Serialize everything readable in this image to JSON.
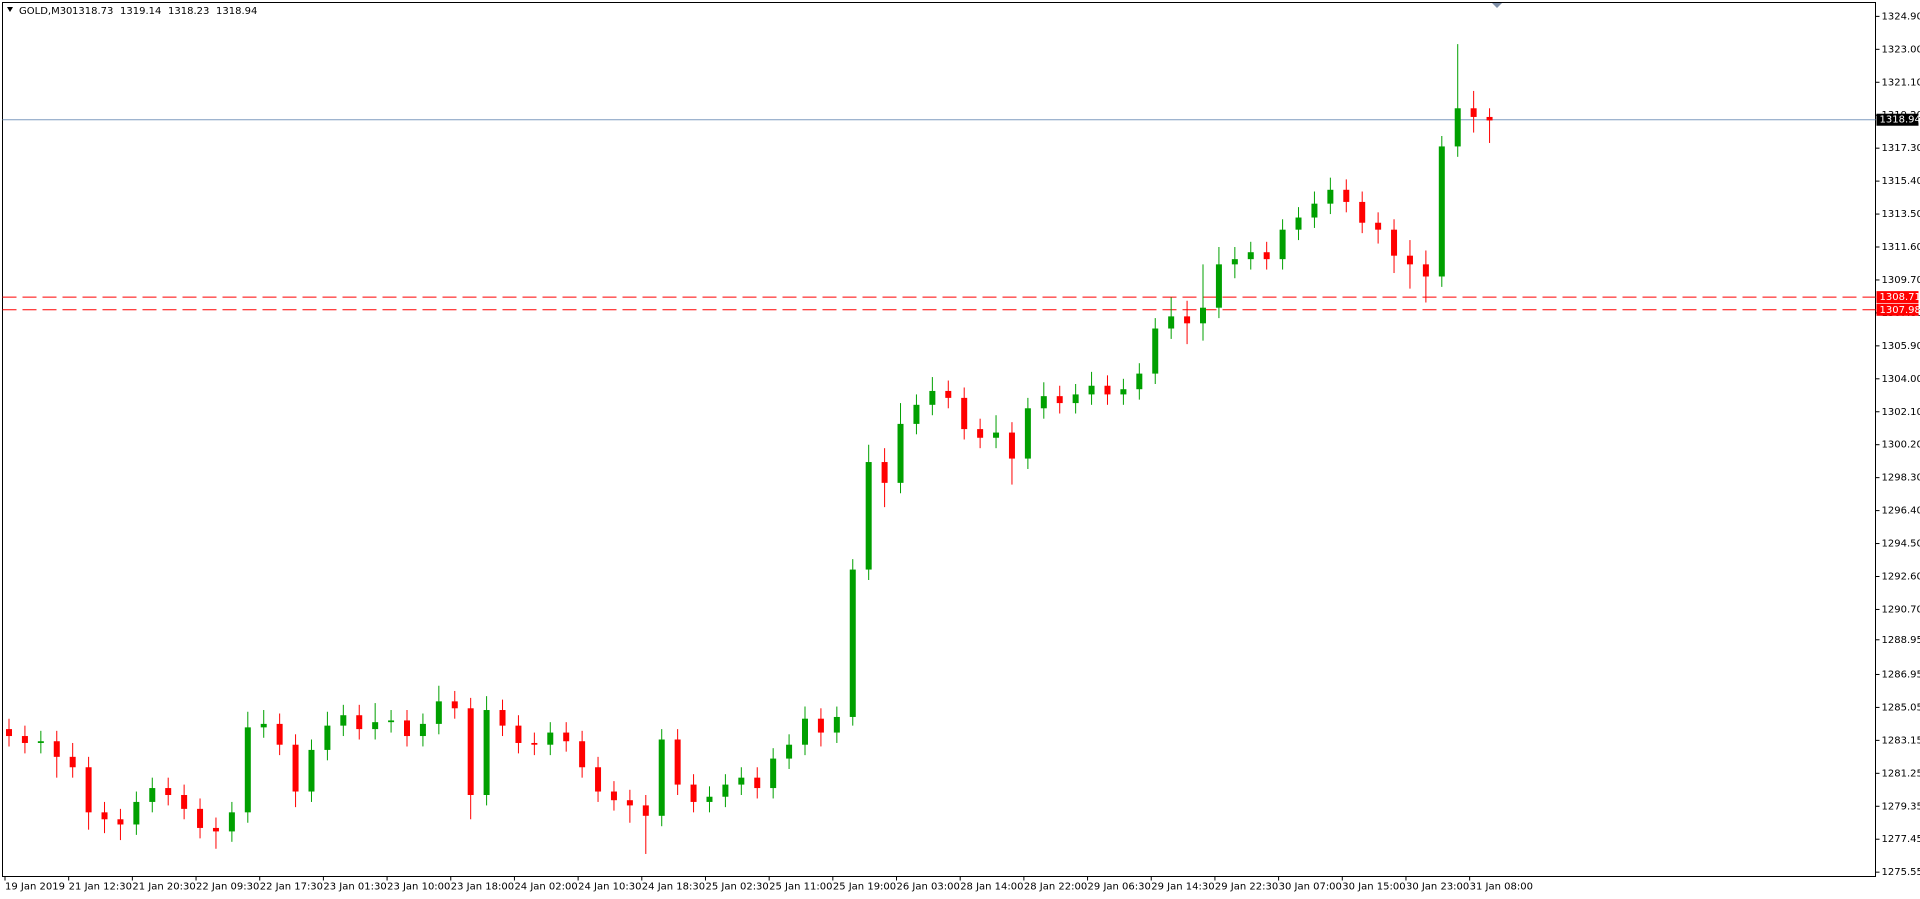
{
  "chart_data": {
    "type": "candlestick",
    "title": "GOLD,M30",
    "ohlc_header": [
      1318.73,
      1319.14,
      1318.23,
      1318.94
    ],
    "up_color": "#00a000",
    "down_color": "#ff0000",
    "categories": [
      "19 Jan 2019",
      null,
      null,
      null,
      "21 Jan 12:30",
      null,
      null,
      null,
      "21 Jan 20:30",
      null,
      null,
      null,
      "22 Jan 09:30",
      null,
      null,
      null,
      "22 Jan 17:30",
      null,
      null,
      null,
      "23 Jan 01:30",
      null,
      null,
      null,
      "23 Jan 10:00",
      null,
      null,
      null,
      "23 Jan 18:00",
      null,
      null,
      null,
      "24 Jan 02:00",
      null,
      null,
      null,
      "24 Jan 10:30",
      null,
      null,
      null,
      "24 Jan 18:30",
      null,
      null,
      null,
      "25 Jan 02:30",
      null,
      null,
      null,
      "25 Jan 11:00",
      null,
      null,
      null,
      "25 Jan 19:00",
      null,
      null,
      null,
      "26 Jan 03:00",
      null,
      null,
      null,
      "28 Jan 14:00",
      null,
      null,
      null,
      "28 Jan 22:00",
      null,
      null,
      null,
      "29 Jan 06:30",
      null,
      null,
      null,
      "29 Jan 14:30",
      null,
      null,
      null,
      "29 Jan 22:30",
      null,
      null,
      null,
      "30 Jan 07:00",
      null,
      null,
      null,
      "30 Jan 15:00",
      null,
      null,
      null,
      "30 Jan 23:00",
      null,
      null,
      null,
      "31 Jan 08:00",
      null
    ],
    "open": [
      1283.8,
      1283.4,
      1283.0,
      1283.1,
      1282.2,
      1281.6,
      1279.0,
      1278.6,
      1278.3,
      1279.6,
      1280.4,
      1280.0,
      1279.2,
      1278.1,
      1277.9,
      1279.0,
      1283.9,
      1284.1,
      1282.9,
      1280.2,
      1282.6,
      1284.0,
      1284.6,
      1283.8,
      1284.2,
      1284.3,
      1283.4,
      1284.1,
      1285.4,
      1285.0,
      1280.0,
      1284.9,
      1284.0,
      1283.0,
      1282.9,
      1283.6,
      1283.1,
      1281.6,
      1280.2,
      1279.7,
      1279.4,
      1278.8,
      1283.2,
      1280.6,
      1279.6,
      1279.9,
      1280.6,
      1281.0,
      1280.4,
      1282.1,
      1282.9,
      1284.4,
      1283.6,
      1284.5,
      1293.0,
      1299.2,
      1298.0,
      1301.4,
      1302.5,
      1303.3,
      1302.9,
      1301.1,
      1300.6,
      1300.9,
      1299.4,
      1302.3,
      1303.0,
      1302.6,
      1303.1,
      1303.6,
      1303.1,
      1303.4,
      1304.3,
      1306.9,
      1307.6,
      1307.2,
      1308.1,
      1310.6,
      1310.9,
      1311.3,
      1310.9,
      1312.6,
      1313.3,
      1314.1,
      1314.9,
      1314.2,
      1313.0,
      1312.6,
      1311.1,
      1310.6,
      1309.9,
      1317.4,
      1319.6,
      1319.1
    ],
    "high": [
      1284.4,
      1284.0,
      1283.7,
      1283.7,
      1283.0,
      1282.2,
      1279.6,
      1279.2,
      1280.2,
      1281.0,
      1281.0,
      1280.6,
      1279.8,
      1278.7,
      1279.6,
      1284.8,
      1284.9,
      1284.7,
      1283.5,
      1283.2,
      1284.8,
      1285.2,
      1285.2,
      1285.3,
      1284.9,
      1284.9,
      1284.7,
      1286.3,
      1286.0,
      1285.6,
      1285.7,
      1285.5,
      1284.6,
      1283.6,
      1284.2,
      1284.2,
      1283.7,
      1282.2,
      1280.8,
      1280.3,
      1280.0,
      1283.8,
      1283.8,
      1281.2,
      1280.5,
      1281.2,
      1281.6,
      1281.6,
      1282.7,
      1283.5,
      1285.1,
      1285.0,
      1285.1,
      1293.6,
      1300.2,
      1300.0,
      1302.6,
      1303.1,
      1304.1,
      1303.9,
      1303.5,
      1301.7,
      1301.9,
      1301.5,
      1302.9,
      1303.8,
      1303.6,
      1303.7,
      1304.4,
      1304.2,
      1304.0,
      1304.9,
      1307.5,
      1308.7,
      1308.5,
      1310.6,
      1311.6,
      1311.6,
      1311.9,
      1311.9,
      1313.2,
      1313.9,
      1314.8,
      1315.6,
      1315.5,
      1314.8,
      1313.6,
      1313.2,
      1312.0,
      1311.4,
      1318.0,
      1323.3,
      1320.6,
      1319.6
    ],
    "low": [
      1282.8,
      1282.4,
      1282.4,
      1281.0,
      1281.0,
      1278.0,
      1277.8,
      1277.4,
      1277.7,
      1279.0,
      1279.4,
      1278.6,
      1277.5,
      1276.9,
      1277.3,
      1278.4,
      1283.3,
      1282.3,
      1279.3,
      1279.6,
      1282.0,
      1283.4,
      1283.2,
      1283.2,
      1283.6,
      1282.8,
      1282.8,
      1283.5,
      1284.4,
      1278.6,
      1279.4,
      1283.4,
      1282.4,
      1282.3,
      1282.3,
      1282.5,
      1281.0,
      1279.6,
      1279.1,
      1278.4,
      1276.6,
      1278.2,
      1280.0,
      1279.0,
      1279.0,
      1279.3,
      1280.0,
      1279.8,
      1279.8,
      1281.5,
      1282.3,
      1282.8,
      1283.0,
      1284.0,
      1292.4,
      1296.6,
      1297.4,
      1300.8,
      1301.9,
      1302.3,
      1300.5,
      1300.0,
      1300.0,
      1297.9,
      1298.8,
      1301.7,
      1302.0,
      1302.0,
      1302.5,
      1302.5,
      1302.5,
      1302.8,
      1303.7,
      1306.3,
      1306.0,
      1306.2,
      1307.5,
      1309.8,
      1310.3,
      1310.3,
      1310.3,
      1312.0,
      1312.7,
      1313.5,
      1313.6,
      1312.4,
      1311.8,
      1310.1,
      1309.2,
      1308.4,
      1309.3,
      1316.8,
      1318.2,
      1317.6
    ],
    "close": [
      1283.4,
      1283.0,
      1283.1,
      1282.2,
      1281.6,
      1279.0,
      1278.6,
      1278.3,
      1279.6,
      1280.4,
      1280.0,
      1279.2,
      1278.1,
      1277.9,
      1279.0,
      1283.9,
      1284.1,
      1282.9,
      1280.2,
      1282.6,
      1284.0,
      1284.6,
      1283.8,
      1284.2,
      1284.3,
      1283.4,
      1284.1,
      1285.4,
      1285.0,
      1280.0,
      1284.9,
      1284.0,
      1283.0,
      1282.9,
      1283.6,
      1283.1,
      1281.6,
      1280.2,
      1279.7,
      1279.4,
      1278.8,
      1283.2,
      1280.6,
      1279.6,
      1279.9,
      1280.6,
      1281.0,
      1280.4,
      1282.1,
      1282.9,
      1284.4,
      1283.6,
      1284.5,
      1293.0,
      1299.2,
      1298.0,
      1301.4,
      1302.5,
      1303.3,
      1302.9,
      1301.1,
      1300.6,
      1300.9,
      1299.4,
      1302.3,
      1303.0,
      1302.6,
      1303.1,
      1303.6,
      1303.1,
      1303.4,
      1304.3,
      1306.9,
      1307.6,
      1307.2,
      1308.1,
      1310.6,
      1310.9,
      1311.3,
      1310.9,
      1312.6,
      1313.3,
      1314.1,
      1314.9,
      1314.2,
      1313.0,
      1312.6,
      1311.1,
      1310.6,
      1309.9,
      1317.4,
      1319.6,
      1319.1,
      1318.9
    ],
    "ylim": [
      1275.3,
      1325.7
    ],
    "yticks": [
      {
        "value": 1324.9,
        "label": "1324.90"
      },
      {
        "value": 1323.0,
        "label": "1323.00"
      },
      {
        "value": 1321.1,
        "label": "1321.10"
      },
      {
        "value": 1319.2,
        "label": "1319.20"
      },
      {
        "value": 1317.3,
        "label": "1317.30"
      },
      {
        "value": 1315.4,
        "label": "1315.40"
      },
      {
        "value": 1313.5,
        "label": "1313.50"
      },
      {
        "value": 1311.6,
        "label": "1311.60"
      },
      {
        "value": 1309.7,
        "label": "1309.70"
      },
      {
        "value": 1307.8,
        "label": "1307.80"
      },
      {
        "value": 1305.9,
        "label": "1305.90"
      },
      {
        "value": 1304.0,
        "label": "1304.00"
      },
      {
        "value": 1302.1,
        "label": "1302.10"
      },
      {
        "value": 1300.2,
        "label": "1300.20"
      },
      {
        "value": 1298.3,
        "label": "1298.30"
      },
      {
        "value": 1296.4,
        "label": "1296.40"
      },
      {
        "value": 1294.5,
        "label": "1294.50"
      },
      {
        "value": 1292.6,
        "label": "1292.60"
      },
      {
        "value": 1290.7,
        "label": "1290.70"
      },
      {
        "value": 1288.95,
        "label": "1288.95"
      },
      {
        "value": 1286.95,
        "label": "1286.95"
      },
      {
        "value": 1285.05,
        "label": "1285.05"
      },
      {
        "value": 1283.15,
        "label": "1283.15"
      },
      {
        "value": 1281.25,
        "label": "1281.25"
      },
      {
        "value": 1279.35,
        "label": "1279.35"
      },
      {
        "value": 1277.45,
        "label": "1277.45"
      },
      {
        "value": 1275.55,
        "label": "1275.55"
      }
    ],
    "hlines": [
      {
        "value": 1318.94,
        "color": "#7f9bbf",
        "dashed": false,
        "label_color": "#000000"
      },
      {
        "value": 1308.71,
        "color": "#ff0000",
        "dashed": true,
        "label_color": "#ff0000"
      },
      {
        "value": 1307.98,
        "color": "#ff0000",
        "dashed": true,
        "label_color": "#ff0000"
      }
    ]
  }
}
